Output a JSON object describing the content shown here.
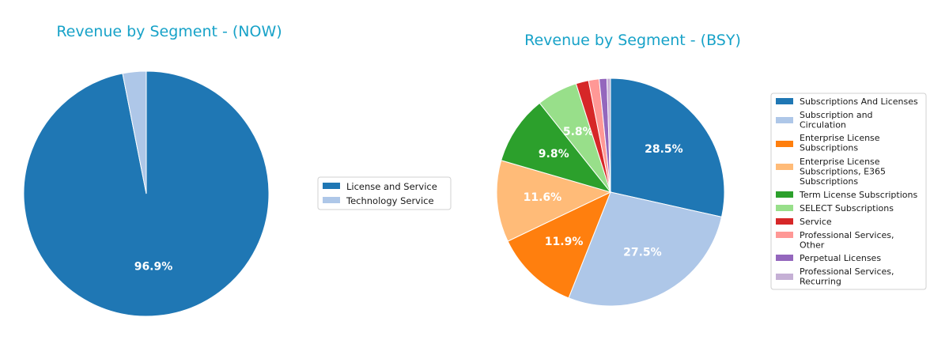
{
  "chart_data": [
    {
      "type": "pie",
      "title": "Revenue by Segment - (NOW)",
      "legend_placement": "right",
      "categories": [
        "License and Service",
        "Technology Service"
      ],
      "values": [
        96.9,
        3.1
      ],
      "data_labels": [
        "96.9%",
        ""
      ],
      "colors": [
        "#1f77b4",
        "#aec7e8"
      ]
    },
    {
      "type": "pie",
      "title": "Revenue by Segment - (BSY)",
      "legend_placement": "right",
      "categories": [
        "Subscriptions And Licenses",
        "Subscription and\nCirculation",
        "Enterprise License\nSubscriptions",
        "Enterprise License\nSubscriptions, E365\nSubscriptions",
        "Term License Subscriptions",
        "SELECT Subscriptions",
        "Service",
        "Professional Services,\nOther",
        "Perpetual Licenses",
        "Professional Services,\nRecurring"
      ],
      "values": [
        28.5,
        27.5,
        11.9,
        11.6,
        9.8,
        5.8,
        1.8,
        1.5,
        1.1,
        0.5
      ],
      "data_labels": [
        "28.5%",
        "27.5%",
        "11.9%",
        "11.6%",
        "9.8%",
        "5.8%",
        "",
        "",
        "",
        ""
      ],
      "colors": [
        "#1f77b4",
        "#aec7e8",
        "#ff7f0e",
        "#ffbb78",
        "#2ca02c",
        "#98df8a",
        "#d62728",
        "#ff9896",
        "#9467bd",
        "#c5b0d5"
      ]
    }
  ]
}
